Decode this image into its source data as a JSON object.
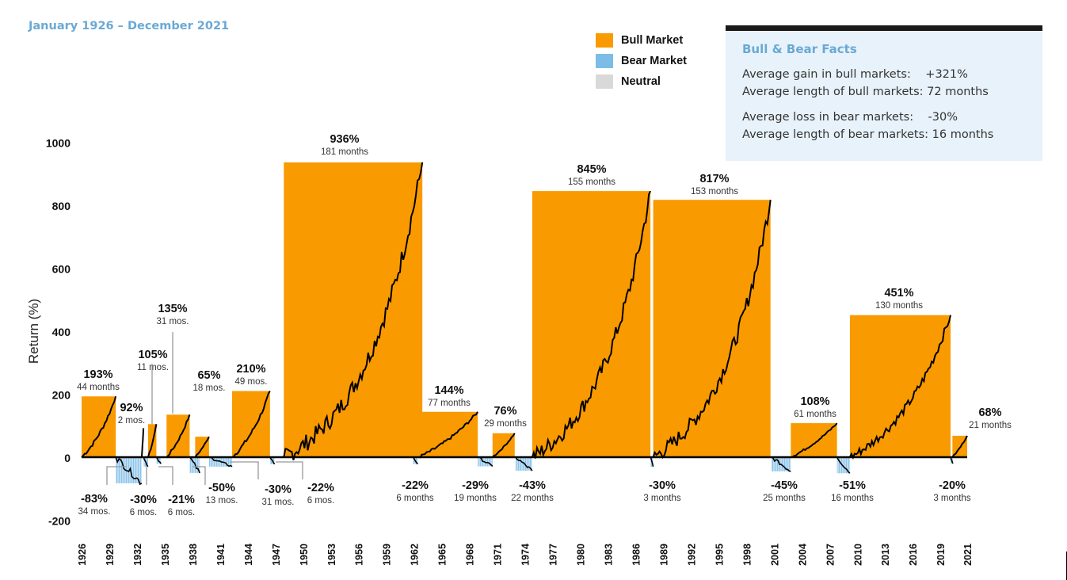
{
  "subtitle": "January 1926 – December 2021",
  "legend": [
    {
      "label": "Bull Market",
      "color": "#f99a00"
    },
    {
      "label": "Bear Market",
      "color": "#7bbde6"
    },
    {
      "label": "Neutral",
      "color": "#d9d9d9"
    }
  ],
  "facts": {
    "title": "Bull & Bear Facts",
    "rows": [
      "Average gain in bull markets:    +321%",
      "Average length of bull markets: 72 months",
      "Average loss in bear markets:    -30%",
      "Average length of bear markets: 16 months"
    ]
  },
  "chart_data": {
    "type": "bar",
    "title": "",
    "xlabel": "",
    "ylabel": "Return (%)",
    "ylim": [
      -200,
      1000
    ],
    "yticks": [
      1000,
      800,
      600,
      400,
      200,
      0,
      -200
    ],
    "xlim": [
      1926,
      2022
    ],
    "xticks": [
      "1926",
      "1929",
      "1932",
      "1935",
      "1938",
      "1941",
      "1944",
      "1947",
      "1950",
      "1953",
      "1956",
      "1959",
      "1962",
      "1965",
      "1968",
      "1971",
      "1974",
      "1977",
      "1980",
      "1983",
      "1986",
      "1989",
      "1992",
      "1995",
      "1998",
      "2001",
      "2004",
      "2007",
      "2010",
      "2013",
      "2016",
      "2019",
      "2021"
    ],
    "bull_markets": [
      {
        "start": 1926.0,
        "end": 1929.7,
        "return": 193,
        "label": "193%",
        "duration": "44 months"
      },
      {
        "start": 1932.5,
        "end": 1932.7,
        "return": 92,
        "label": "92%",
        "duration": "2 mos."
      },
      {
        "start": 1933.2,
        "end": 1934.1,
        "return": 105,
        "label": "105%",
        "duration": "11 mos."
      },
      {
        "start": 1935.2,
        "end": 1937.7,
        "return": 135,
        "label": "135%",
        "duration": "31 mos."
      },
      {
        "start": 1938.3,
        "end": 1939.8,
        "return": 65,
        "label": "65%",
        "duration": "18 mos."
      },
      {
        "start": 1942.3,
        "end": 1946.4,
        "return": 210,
        "label": "210%",
        "duration": "49 mos."
      },
      {
        "start": 1947.9,
        "end": 1962.9,
        "return": 936,
        "label": "936%",
        "duration": "181 months"
      },
      {
        "start": 1962.5,
        "end": 1968.9,
        "return": 144,
        "label": "144%",
        "duration": "77 months"
      },
      {
        "start": 1970.5,
        "end": 1972.9,
        "return": 76,
        "label": "76%",
        "duration": "29 months"
      },
      {
        "start": 1974.8,
        "end": 1987.6,
        "return": 845,
        "label": "845%",
        "duration": "155 months"
      },
      {
        "start": 1987.9,
        "end": 2000.6,
        "return": 817,
        "label": "817%",
        "duration": "153 months"
      },
      {
        "start": 2002.8,
        "end": 2007.8,
        "return": 108,
        "label": "108%",
        "duration": "61 months"
      },
      {
        "start": 2009.2,
        "end": 2020.1,
        "return": 451,
        "label": "451%",
        "duration": "130 months"
      },
      {
        "start": 2020.3,
        "end": 2021.9,
        "return": 68,
        "label": "68%",
        "duration": "21 months"
      }
    ],
    "bear_markets": [
      {
        "start": 1929.7,
        "end": 1932.5,
        "return": -83,
        "label": "-83%",
        "duration": "34 mos."
      },
      {
        "start": 1932.7,
        "end": 1933.2,
        "return": -30,
        "label": "-30%",
        "duration": "6 mos."
      },
      {
        "start": 1934.1,
        "end": 1934.6,
        "return": -21,
        "label": "-21%",
        "duration": "6 mos."
      },
      {
        "start": 1937.7,
        "end": 1938.8,
        "return": -50,
        "label": "-50%",
        "duration": "13 mos."
      },
      {
        "start": 1939.8,
        "end": 1942.3,
        "return": -30,
        "label": "-30%",
        "duration": "31 mos."
      },
      {
        "start": 1946.4,
        "end": 1946.9,
        "return": -22,
        "label": "-22%",
        "duration": "6 mos."
      },
      {
        "start": 1961.9,
        "end": 1962.4,
        "return": -22,
        "label": "-22%",
        "duration": "6 months"
      },
      {
        "start": 1968.9,
        "end": 1970.5,
        "return": -29,
        "label": "-29%",
        "duration": "19 months"
      },
      {
        "start": 1973.0,
        "end": 1974.8,
        "return": -43,
        "label": "-43%",
        "duration": "22 months"
      },
      {
        "start": 1987.6,
        "end": 1987.9,
        "return": -30,
        "label": "-30%",
        "duration": "3 months"
      },
      {
        "start": 2000.7,
        "end": 2002.8,
        "return": -45,
        "label": "-45%",
        "duration": "25 months"
      },
      {
        "start": 2007.8,
        "end": 2009.2,
        "return": -51,
        "label": "-51%",
        "duration": "16 months"
      },
      {
        "start": 2020.1,
        "end": 2020.3,
        "return": -20,
        "label": "-20%",
        "duration": "3 months"
      }
    ]
  }
}
